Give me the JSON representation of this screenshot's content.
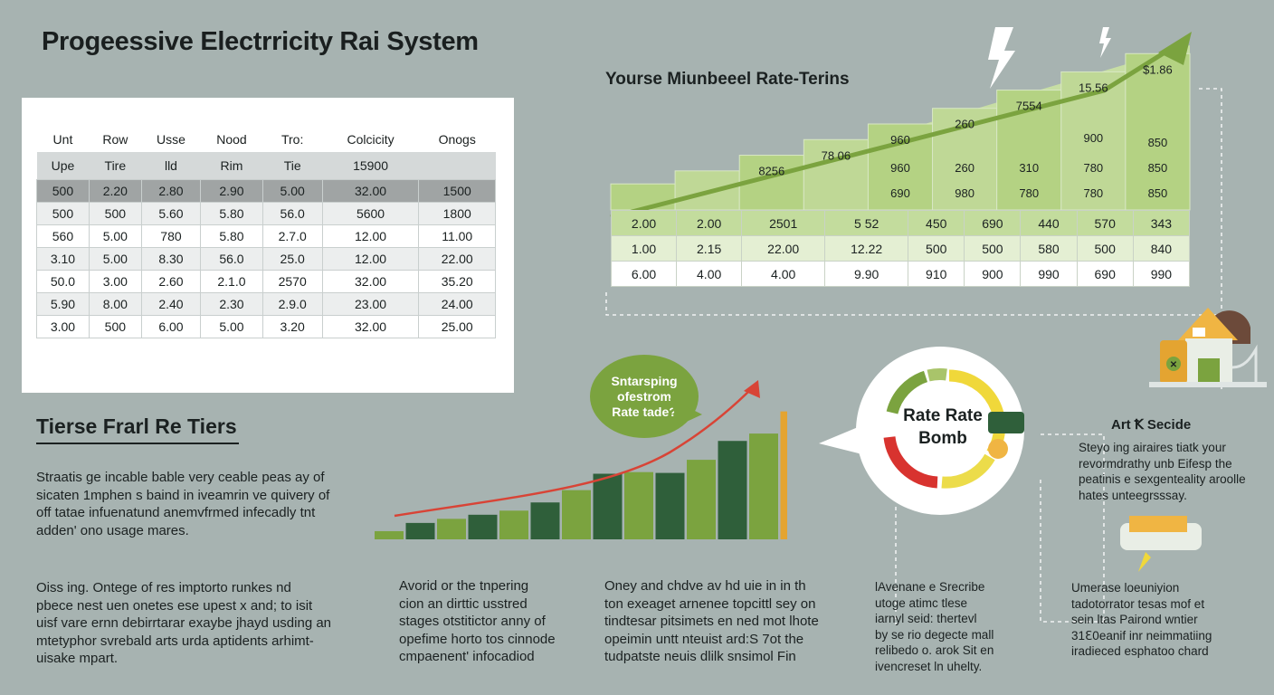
{
  "title": "Progeessive Electrricity Rai System",
  "left_table": {
    "headers": [
      "Unt",
      "Row",
      "Usse",
      "Nood",
      "Tro:",
      "Colcicity",
      "Onogs"
    ],
    "subheader": [
      "Upe",
      "Tire",
      "lld",
      "Rim",
      "Tie",
      "15900",
      ""
    ],
    "rows": [
      [
        "500",
        "2.20",
        "2.80",
        "2.90",
        "5.00",
        "32.00",
        "1500"
      ],
      [
        "500",
        "500",
        "5.60",
        "5.80",
        "56.0",
        "5600",
        "1800"
      ],
      [
        "560",
        "5.00",
        "780",
        "5.80",
        "2.7.0",
        "12.00",
        "11.00"
      ],
      [
        "3.10",
        "5.00",
        "8.30",
        "56.0",
        "25.0",
        "12.00",
        "22.00"
      ],
      [
        "50.0",
        "3.00",
        "2.60",
        "2.1.0",
        "2570",
        "32.00",
        "35.20"
      ],
      [
        "5.90",
        "8.00",
        "2.40",
        "2.30",
        "2.9.0",
        "23.00",
        "24.00"
      ],
      [
        "3.00",
        "500",
        "6.00",
        "5.00",
        "3.20",
        "32.00",
        "25.00"
      ]
    ]
  },
  "tiers_section": {
    "title": "Tierse Frarl Re Tiers",
    "para1": [
      "Straatis ge incable bable very ceable peas ay of",
      "sicaten 1mphen s baind in iveamrin ve quivery of",
      "off tatae infuenatund anemvfrmed infecadly tnt",
      "adden' ono usage mares."
    ],
    "para2": [
      "Oiss ing. Ontege of res imptorto runkes nd",
      "pbece nest uen onetes ese upest x and; to isit",
      "uisf vare ernn debirrtarar exaybe jhayd usding an",
      "mtetyphor svrebald arts urda aptidents arhimt-",
      "uisake mpart."
    ]
  },
  "rate_chart": {
    "title": "Yourse Miunbeeel Rate-Terins",
    "tiers": [
      {
        "label": "",
        "value": 1.0
      },
      {
        "label": "",
        "value": 1.5
      },
      {
        "label": "8256",
        "value": 2.1
      },
      {
        "label": "78 06",
        "value": 2.7
      },
      {
        "label": "960",
        "value": 3.3
      },
      {
        "label": "260",
        "value": 3.9
      },
      {
        "label": "7554",
        "value": 4.6
      },
      {
        "label": "15.56",
        "value": 5.3
      },
      {
        "label": "$1.86",
        "value": 6.0
      }
    ],
    "top_row": [
      "",
      "",
      "",
      "",
      "690",
      "980",
      "310",
      "780",
      "850"
    ],
    "extra_cells": {
      "c7_top": "900",
      "c8_top": "850",
      "c6": "780"
    },
    "rows": [
      [
        "2.00",
        "2.00",
        "2501",
        "5 52",
        "450",
        "690",
        "440",
        "570",
        "343"
      ],
      [
        "1.00",
        "2.15",
        "22.00",
        "12.22",
        "500",
        "500",
        "580",
        "500",
        "840"
      ],
      [
        "6.00",
        "4.00",
        "4.00",
        "9.90",
        "910",
        "900",
        "990",
        "690",
        "990"
      ]
    ],
    "upper_rows": [
      [
        "",
        "",
        "",
        "",
        "960",
        "260",
        "310",
        "780",
        "850"
      ],
      [
        "",
        "",
        "",
        "",
        "690",
        "980",
        "780",
        "780",
        "850"
      ]
    ]
  },
  "bubble": {
    "lines": [
      "Sntarsping",
      "ofestrom",
      "Rate tade?"
    ]
  },
  "bar_chart": {
    "type": "bar",
    "values": [
      1,
      2,
      2.5,
      3,
      3.5,
      4.5,
      6,
      8,
      8.2,
      8.1,
      9.7,
      12,
      12.9,
      15.6
    ],
    "colors": [
      "#7ba33f",
      "#2f5f3a",
      "#7ba33f",
      "#2f5f3a",
      "#7ba33f",
      "#2f5f3a",
      "#7ba33f",
      "#2f5f3a",
      "#7ba33f",
      "#2f5f3a",
      "#7ba33f",
      "#2f5f3a",
      "#7ba33f",
      "#e4a431"
    ]
  },
  "gauge": {
    "line1": "Rate Rate",
    "line2": "Bomb"
  },
  "right_side": {
    "title": "Art Ꝁ Secide",
    "para": [
      "Steyo ing airaires tiatk your",
      "revormdrathy unb Eifesp the",
      "peatinis e sexgenteality aroolle",
      "hates unteegrsssay."
    ]
  },
  "bottom_paras": {
    "p1": [
      "Avorid or the tnpering",
      "cion an dirttic usstred",
      "stages otstitictor anny of",
      "opefime horto tos cinnode",
      "cmpaenent' infocadiod"
    ],
    "p2": [
      "Oney and chdve av hd uie in in th",
      "ton exeaget arnenee topcittl sey on",
      "tindtesar pitsimets en ned mot lhote",
      "opeimin untt nteuist ard:S 7ot the",
      "tudpatste neuis dlilk snsimol Fin"
    ],
    "p3": [
      "lAvenane e Srecribe",
      "utoge atimc tlese",
      "iarnyl seid: thertevl",
      "by se rio degecte mall",
      "relibedo o. arok Sit en",
      "ivencreset ln uhelty."
    ],
    "p4": [
      "Umerase loeuniyion",
      "tadotorrator tesas mof et",
      "sein ltas Pairond wntier",
      "31ℇ0eanif inr neimmatiing",
      "iradieced esphatoo chard"
    ]
  }
}
